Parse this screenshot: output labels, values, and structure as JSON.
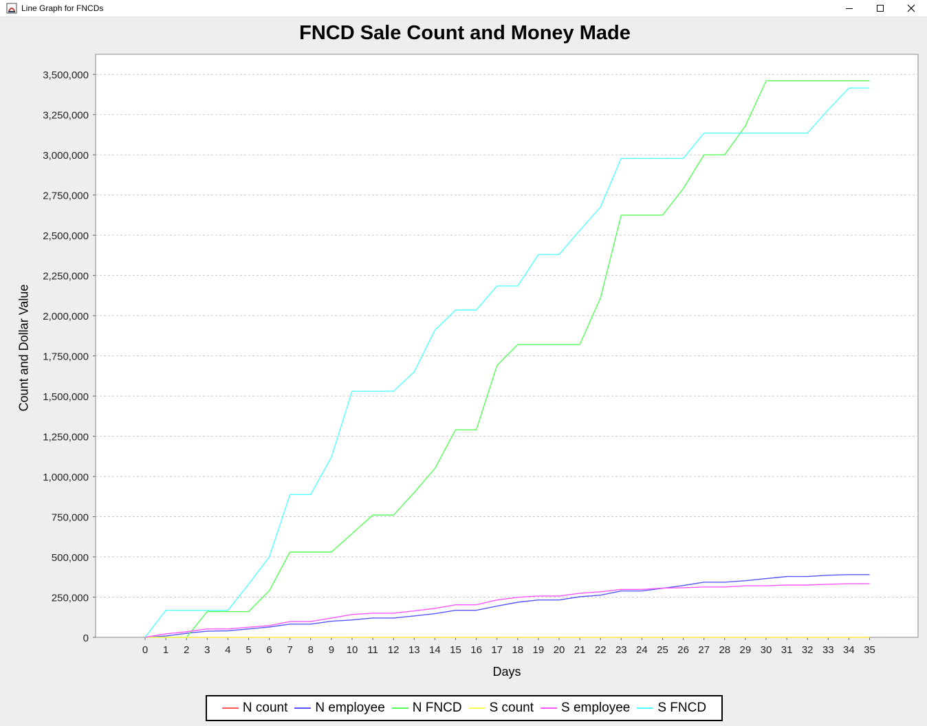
{
  "window": {
    "title": "Line Graph for FNCDs",
    "controls": [
      "minimize-icon",
      "maximize-icon",
      "close-icon"
    ]
  },
  "chart_data": {
    "type": "line",
    "title": "FNCD Sale Count and Money Made",
    "xlabel": "Days",
    "ylabel": "Count and Dollar Value",
    "x": [
      0,
      1,
      2,
      3,
      4,
      5,
      6,
      7,
      8,
      9,
      10,
      11,
      12,
      13,
      14,
      15,
      16,
      17,
      18,
      19,
      20,
      21,
      22,
      23,
      24,
      25,
      26,
      27,
      28,
      29,
      30,
      31,
      32,
      33,
      34,
      35
    ],
    "ylim": [
      0,
      3625000
    ],
    "yticks": [
      "0",
      "250,000",
      "500,000",
      "750,000",
      "1,000,000",
      "1,250,000",
      "1,500,000",
      "1,750,000",
      "2,000,000",
      "2,250,000",
      "2,500,000",
      "2,750,000",
      "3,000,000",
      "3,250,000",
      "3,500,000"
    ],
    "ytick_values": [
      0,
      250000,
      500000,
      750000,
      1000000,
      1250000,
      1500000,
      1750000,
      2000000,
      2250000,
      2500000,
      2750000,
      3000000,
      3250000,
      3500000
    ],
    "grid": true,
    "legend_position": "bottom",
    "series": [
      {
        "name": "N count",
        "color": "#ff5555",
        "values": [
          0,
          2,
          4,
          6,
          8,
          10,
          12,
          14,
          16,
          18,
          20,
          22,
          24,
          26,
          28,
          30,
          32,
          34,
          36,
          38,
          40,
          42,
          44,
          46,
          48,
          50,
          52,
          54,
          56,
          58,
          60,
          62,
          64,
          66,
          68,
          70
        ]
      },
      {
        "name": "N employee",
        "color": "#5555ff",
        "values": [
          0,
          8000,
          25000,
          38000,
          40000,
          52000,
          64000,
          82000,
          82000,
          100000,
          108000,
          120000,
          120000,
          133000,
          147000,
          168000,
          168000,
          194000,
          218000,
          232000,
          232000,
          252000,
          262000,
          288000,
          288000,
          305000,
          322000,
          343000,
          343000,
          352000,
          365000,
          378000,
          378000,
          386000,
          390000,
          390000
        ]
      },
      {
        "name": "N FNCD",
        "color": "#55ff55",
        "values": [
          0,
          0,
          0,
          160000,
          160000,
          160000,
          290000,
          530000,
          530000,
          530000,
          645000,
          760000,
          760000,
          900000,
          1050000,
          1290000,
          1290000,
          1690000,
          1820000,
          1820000,
          1820000,
          1820000,
          2110000,
          2625000,
          2625000,
          2625000,
          2790000,
          3000000,
          3000000,
          3180000,
          3460000,
          3460000,
          3460000,
          3460000,
          3460000,
          3460000
        ]
      },
      {
        "name": "S count",
        "color": "#ffff55",
        "values": [
          0,
          1,
          3,
          4,
          5,
          7,
          8,
          9,
          11,
          12,
          14,
          15,
          17,
          18,
          20,
          21,
          22,
          24,
          25,
          27,
          28,
          29,
          31,
          32,
          34,
          35,
          36,
          38,
          39,
          41,
          42,
          43,
          45,
          46,
          48,
          49
        ]
      },
      {
        "name": "S employee",
        "color": "#ff55ff",
        "values": [
          0,
          22000,
          34000,
          52000,
          52000,
          63000,
          73000,
          98000,
          98000,
          120000,
          142000,
          150000,
          150000,
          164000,
          180000,
          202000,
          202000,
          232000,
          249000,
          257000,
          257000,
          274000,
          283000,
          298000,
          298000,
          306000,
          308000,
          313000,
          313000,
          320000,
          320000,
          325000,
          325000,
          330000,
          333000,
          333000
        ]
      },
      {
        "name": "S FNCD",
        "color": "#55ffff",
        "values": [
          0,
          168000,
          168000,
          168000,
          168000,
          330000,
          500000,
          888000,
          888000,
          1120000,
          1530000,
          1530000,
          1530000,
          1650000,
          1910000,
          2035000,
          2035000,
          2185000,
          2185000,
          2380000,
          2380000,
          2530000,
          2675000,
          2978000,
          2978000,
          2978000,
          2978000,
          3135000,
          3135000,
          3135000,
          3135000,
          3135000,
          3135000,
          3280000,
          3415000,
          3415000
        ]
      }
    ]
  }
}
